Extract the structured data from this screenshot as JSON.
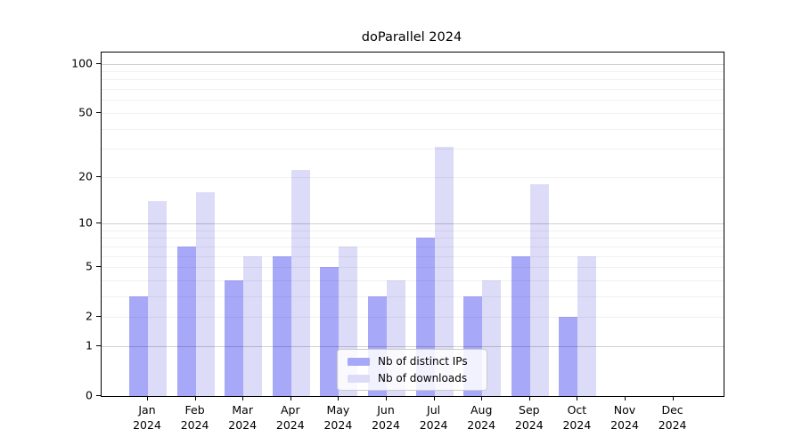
{
  "chart_data": {
    "type": "bar",
    "title": "doParallel 2024",
    "categories": [
      "Jan",
      "Feb",
      "Mar",
      "Apr",
      "May",
      "Jun",
      "Jul",
      "Aug",
      "Sep",
      "Oct",
      "Nov",
      "Dec"
    ],
    "x_year": "2024",
    "series": [
      {
        "name": "Nb of distinct IPs",
        "color": "#a8a8f8",
        "values": [
          3,
          7,
          4,
          6,
          5,
          3,
          8,
          3,
          6,
          2,
          0,
          0
        ]
      },
      {
        "name": "Nb of downloads",
        "color": "#dcdcf8",
        "values": [
          14,
          16,
          6,
          22,
          7,
          4,
          31,
          4,
          18,
          6,
          0,
          0
        ]
      }
    ],
    "y_scale": "log1p",
    "y_ticks": [
      0,
      1,
      2,
      5,
      10,
      20,
      50,
      100
    ],
    "y_major_gridlines": [
      1,
      10,
      100
    ],
    "y_max": 117,
    "grid": "on",
    "legend_position": "lower-center-inside",
    "accent_colors": {
      "bar_dark": "#a8a8f8",
      "bar_light": "#dcdcf8",
      "axis": "#000000"
    }
  }
}
